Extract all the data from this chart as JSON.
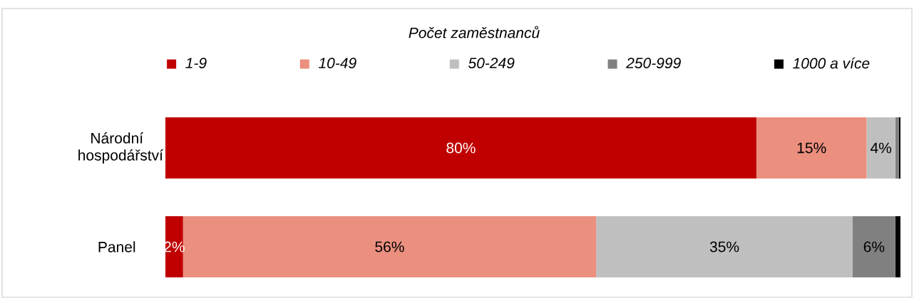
{
  "chart_data": {
    "type": "bar",
    "orientation": "horizontal",
    "stacked": true,
    "legend_title": "Počet zaměstnanců",
    "legend": "top",
    "tick_labels": "y",
    "categories": [
      "Národní hospodářství",
      "Panel"
    ],
    "series": [
      {
        "name": "1-9",
        "color": "#c00000",
        "values": [
          80.4,
          2.4
        ],
        "value_labels": [
          "80%",
          "2%"
        ]
      },
      {
        "name": "10-49",
        "color": "#eb8f7f",
        "values": [
          15.0,
          56.2
        ],
        "value_labels": [
          "15%",
          "56%"
        ]
      },
      {
        "name": "50-249",
        "color": "#bfbfbf",
        "values": [
          3.9,
          34.9
        ],
        "value_labels": [
          "4%",
          "35%"
        ]
      },
      {
        "name": "250-999",
        "color": "#808080",
        "values": [
          0.5,
          5.8
        ],
        "value_labels": [
          null,
          "6%"
        ]
      },
      {
        "name": "1000 a více",
        "color": "#000000",
        "values": [
          0.2,
          0.7
        ],
        "value_labels": [
          null,
          null
        ]
      }
    ]
  }
}
